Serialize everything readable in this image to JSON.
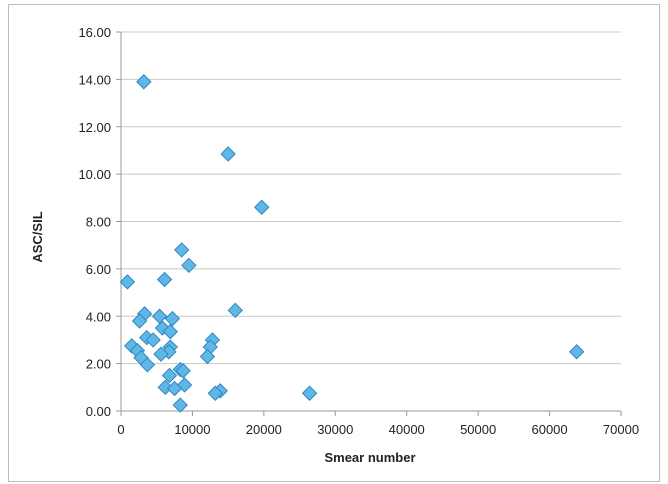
{
  "chart_data": {
    "type": "scatter",
    "xlabel": "Smear number",
    "ylabel": "ASC/SIL",
    "xlim": [
      0,
      70000
    ],
    "ylim": [
      0,
      16
    ],
    "xticks": [
      "0",
      "10000",
      "20000",
      "30000",
      "40000",
      "50000",
      "60000",
      "70000"
    ],
    "yticks": [
      "0.00",
      "2.00",
      "4.00",
      "6.00",
      "8.00",
      "10.00",
      "12.00",
      "14.00",
      "16.00"
    ],
    "grid": "horizontal",
    "marker_color": "#5fb7e6",
    "points": [
      {
        "x": 3200,
        "y": 13.9
      },
      {
        "x": 15000,
        "y": 10.85
      },
      {
        "x": 19700,
        "y": 8.6
      },
      {
        "x": 8500,
        "y": 6.8
      },
      {
        "x": 9500,
        "y": 6.15
      },
      {
        "x": 6100,
        "y": 5.55
      },
      {
        "x": 900,
        "y": 5.45
      },
      {
        "x": 16000,
        "y": 4.25
      },
      {
        "x": 3300,
        "y": 4.1
      },
      {
        "x": 2600,
        "y": 3.8
      },
      {
        "x": 5400,
        "y": 4.0
      },
      {
        "x": 7200,
        "y": 3.9
      },
      {
        "x": 5800,
        "y": 3.5
      },
      {
        "x": 6900,
        "y": 3.35
      },
      {
        "x": 3600,
        "y": 3.1
      },
      {
        "x": 4500,
        "y": 3.0
      },
      {
        "x": 12800,
        "y": 3.0
      },
      {
        "x": 12500,
        "y": 2.7
      },
      {
        "x": 1500,
        "y": 2.75
      },
      {
        "x": 2300,
        "y": 2.55
      },
      {
        "x": 6900,
        "y": 2.7
      },
      {
        "x": 6700,
        "y": 2.5
      },
      {
        "x": 5600,
        "y": 2.4
      },
      {
        "x": 2800,
        "y": 2.25
      },
      {
        "x": 12100,
        "y": 2.3
      },
      {
        "x": 3700,
        "y": 1.95
      },
      {
        "x": 8300,
        "y": 1.75
      },
      {
        "x": 8700,
        "y": 1.7
      },
      {
        "x": 6800,
        "y": 1.5
      },
      {
        "x": 8900,
        "y": 1.1
      },
      {
        "x": 6200,
        "y": 1.0
      },
      {
        "x": 7500,
        "y": 0.95
      },
      {
        "x": 13900,
        "y": 0.85
      },
      {
        "x": 13200,
        "y": 0.75
      },
      {
        "x": 26400,
        "y": 0.75
      },
      {
        "x": 8300,
        "y": 0.25
      },
      {
        "x": 63800,
        "y": 2.5
      }
    ]
  }
}
